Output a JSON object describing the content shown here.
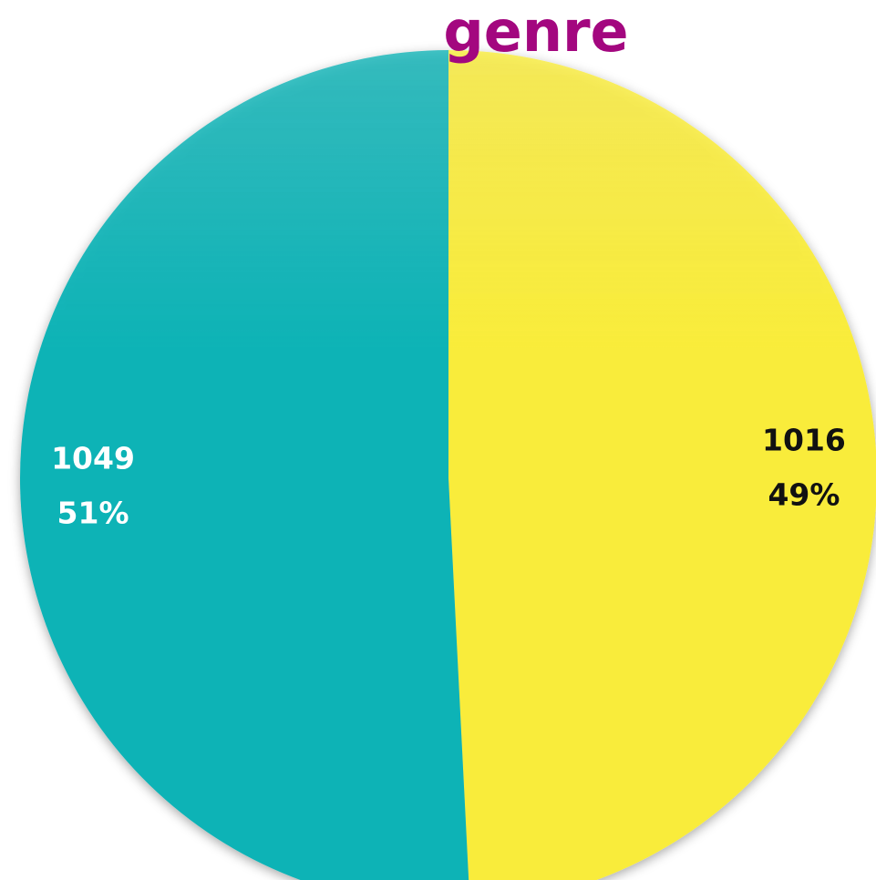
{
  "chart_data": {
    "type": "pie",
    "title": "genre",
    "categories": [
      null,
      null
    ],
    "values": [
      1016,
      1049
    ],
    "percent_labels": [
      "49%",
      "51%"
    ],
    "series_colors": [
      "#f9ec3a",
      "#10b3b6"
    ],
    "label_colors": [
      "#111111",
      "#ffffff"
    ],
    "title_color": "#a3077f"
  }
}
